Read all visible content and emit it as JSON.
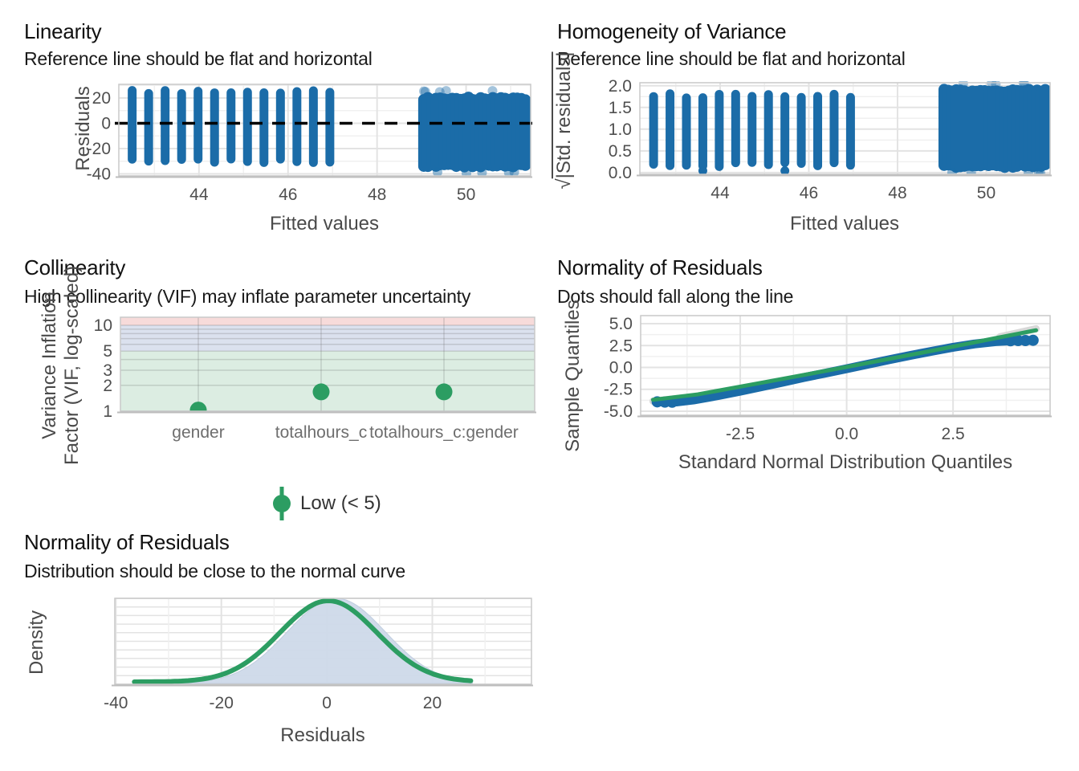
{
  "figure": {
    "name": "model-diagnostics",
    "background": "#ffffff"
  },
  "colors": {
    "point_blue": "#1b6ca8",
    "line_green": "#2c9d62",
    "grid_major": "#e3e3e3",
    "grid_minor": "#f0f0f0",
    "panel_border": "#c9c9c9",
    "axis_line": "#bdbdbd",
    "tick_text": "#4f4f4f",
    "band_low_green": "#dcede2",
    "band_moderate_blue": "#dbe1ee",
    "band_high_red": "#f7dbda",
    "density_fill": "#cdd9e9",
    "reference_black": "#000000",
    "ci_gray": "#d8d8d8"
  },
  "legend": {
    "label": "Low (< 5)",
    "color": "#2c9d62"
  },
  "chart_data": [
    {
      "id": "linearity",
      "type": "scatter",
      "title": "Linearity",
      "subtitle": "Reference line should be flat and horizontal",
      "xlabel": "Fitted values",
      "ylabel": "Residuals",
      "xticks": {
        "values": [
          44,
          46,
          48,
          50
        ],
        "labels": [
          "44",
          "46",
          "48",
          "50"
        ]
      },
      "yticks": {
        "values": [
          20,
          0,
          -20,
          -40
        ],
        "labels": [
          "20",
          "0",
          "-20",
          "-40"
        ]
      },
      "xlim": [
        42.2,
        51.45
      ],
      "ylim": [
        -41.6,
        30.8
      ],
      "reference_line_y": 0,
      "stripes": {
        "x_start": 42.5,
        "x_step": 0.37,
        "count": 13,
        "y_top": 28.5,
        "y_bottom": -33,
        "y_jitter": 1.6
      },
      "cluster": {
        "x_min": 49.05,
        "x_max": 51.33,
        "y_top": 23.5,
        "y_bottom": -37.3,
        "bump": 1.6
      }
    },
    {
      "id": "homogeneity",
      "type": "scatter",
      "title": "Homogeneity of Variance",
      "subtitle": "Reference line should be flat and horizontal",
      "xlabel": "Fitted values",
      "ylabel_sqrt": "√",
      "ylabel_rest": "|Std. residuals|",
      "xticks": {
        "values": [
          44,
          46,
          48,
          50
        ],
        "labels": [
          "44",
          "46",
          "48",
          "50"
        ]
      },
      "yticks": {
        "values": [
          2.0,
          1.5,
          1.0,
          0.5,
          0.0
        ],
        "labels": [
          "2.0",
          "1.5",
          "1.0",
          "0.5",
          "0.0"
        ]
      },
      "xlim": [
        42.19,
        51.44
      ],
      "ylim": [
        -0.04,
        2.07
      ],
      "stripes": {
        "x_start": 42.5,
        "x_step": 0.37,
        "count": 13,
        "y_top": 1.87,
        "y_bottom": 0.085,
        "y_jitter": 0.05
      },
      "cluster": {
        "x_min": 49.05,
        "x_max": 51.33,
        "y_top": 2.0,
        "y_bottom": 0.035,
        "bump": 0.05
      }
    },
    {
      "id": "collinearity",
      "type": "dot",
      "title": "Collinearity",
      "subtitle": "High collinearity (VIF) may inflate parameter uncertainty",
      "ylabel_line1": "Variance Inflation",
      "ylabel_line2": "Factor (VIF, log-scaled)",
      "yticks": {
        "values": [
          10,
          5,
          3,
          2,
          1
        ],
        "labels": [
          "10",
          "5",
          "3",
          "2",
          "1"
        ]
      },
      "categories": [
        "gender",
        "totalhours_c",
        "totalhours_c:gender"
      ],
      "vif_values": [
        1.03,
        1.68,
        1.68
      ],
      "bands": {
        "low": {
          "label": "Low (< 5)",
          "range": [
            1,
            5
          ],
          "color": "#dcede2"
        },
        "moderate": {
          "range": [
            5,
            10
          ],
          "color": "#dbe1ee"
        },
        "high": {
          "range": [
            10,
            12.4
          ],
          "color": "#f7dbda"
        }
      }
    },
    {
      "id": "qq",
      "type": "scatter",
      "title": "Normality of Residuals",
      "subtitle": "Dots should fall along the line",
      "xlabel": "Standard Normal Distribution Quantiles",
      "ylabel": "Sample Quantiles",
      "xticks": {
        "values": [
          -2.5,
          0,
          2.5
        ],
        "labels": [
          "-2.5",
          "0.0",
          "2.5"
        ]
      },
      "yticks": {
        "values": [
          5,
          2.5,
          0,
          -2.5,
          -5
        ],
        "labels": [
          "5.0",
          "2.5",
          "0.0",
          "-2.5",
          "-5.0"
        ]
      },
      "xlim": [
        -4.84,
        4.78
      ],
      "ylim": [
        -5.46,
        5.92
      ],
      "band_points": [
        [
          -4.45,
          -3.95
        ],
        [
          -4.0,
          -3.95
        ],
        [
          -3.6,
          -3.72
        ],
        [
          -3.0,
          -3.2
        ],
        [
          -2.5,
          -2.72
        ],
        [
          -2.0,
          -2.2
        ],
        [
          -1.5,
          -1.68
        ],
        [
          -1.0,
          -1.15
        ],
        [
          -0.5,
          -0.65
        ],
        [
          0,
          -0.15
        ],
        [
          0.5,
          0.37
        ],
        [
          1.0,
          0.88
        ],
        [
          1.5,
          1.38
        ],
        [
          2.0,
          1.85
        ],
        [
          2.5,
          2.3
        ],
        [
          3.0,
          2.68
        ],
        [
          3.5,
          2.95
        ],
        [
          3.9,
          3.05
        ],
        [
          4.37,
          3.1
        ]
      ],
      "line_points": [
        [
          -4.55,
          -3.7
        ],
        [
          -3.5,
          -3.08
        ],
        [
          -2.0,
          -1.75
        ],
        [
          0,
          0.05
        ],
        [
          2.0,
          1.9
        ],
        [
          3.5,
          3.35
        ],
        [
          4.45,
          4.25
        ]
      ],
      "ci_segments": [
        [
          [
            3.6,
            3.5
          ],
          [
            4.45,
            4.42
          ]
        ],
        [
          [
            -4.55,
            -3.85
          ],
          [
            -3.85,
            -3.48
          ]
        ]
      ],
      "tail_dots_right": [
        [
          3.85,
          3.05
        ],
        [
          4.03,
          3.07
        ],
        [
          4.2,
          3.07
        ],
        [
          4.38,
          3.1
        ]
      ],
      "tail_dots_left": [
        [
          -4.45,
          -3.93
        ],
        [
          -4.27,
          -3.96
        ],
        [
          -4.1,
          -3.97
        ]
      ]
    },
    {
      "id": "density",
      "type": "area",
      "title": "Normality of Residuals",
      "subtitle": "Distribution should be close to the normal curve",
      "xlabel": "Residuals",
      "ylabel": "Density",
      "xticks": {
        "values": [
          -40,
          -20,
          0,
          20
        ],
        "labels": [
          "-40",
          "-20",
          "0",
          "20"
        ]
      },
      "xlim": [
        -40.2,
        38.8
      ],
      "normal_curve": {
        "mean": 0.3,
        "sd": 9.2,
        "x_min": -36.5,
        "x_max": 27.3
      },
      "residual_density": {
        "mean": 1.8,
        "sd": 9.3,
        "x_min": -30.5,
        "x_max": 27.6
      }
    }
  ]
}
